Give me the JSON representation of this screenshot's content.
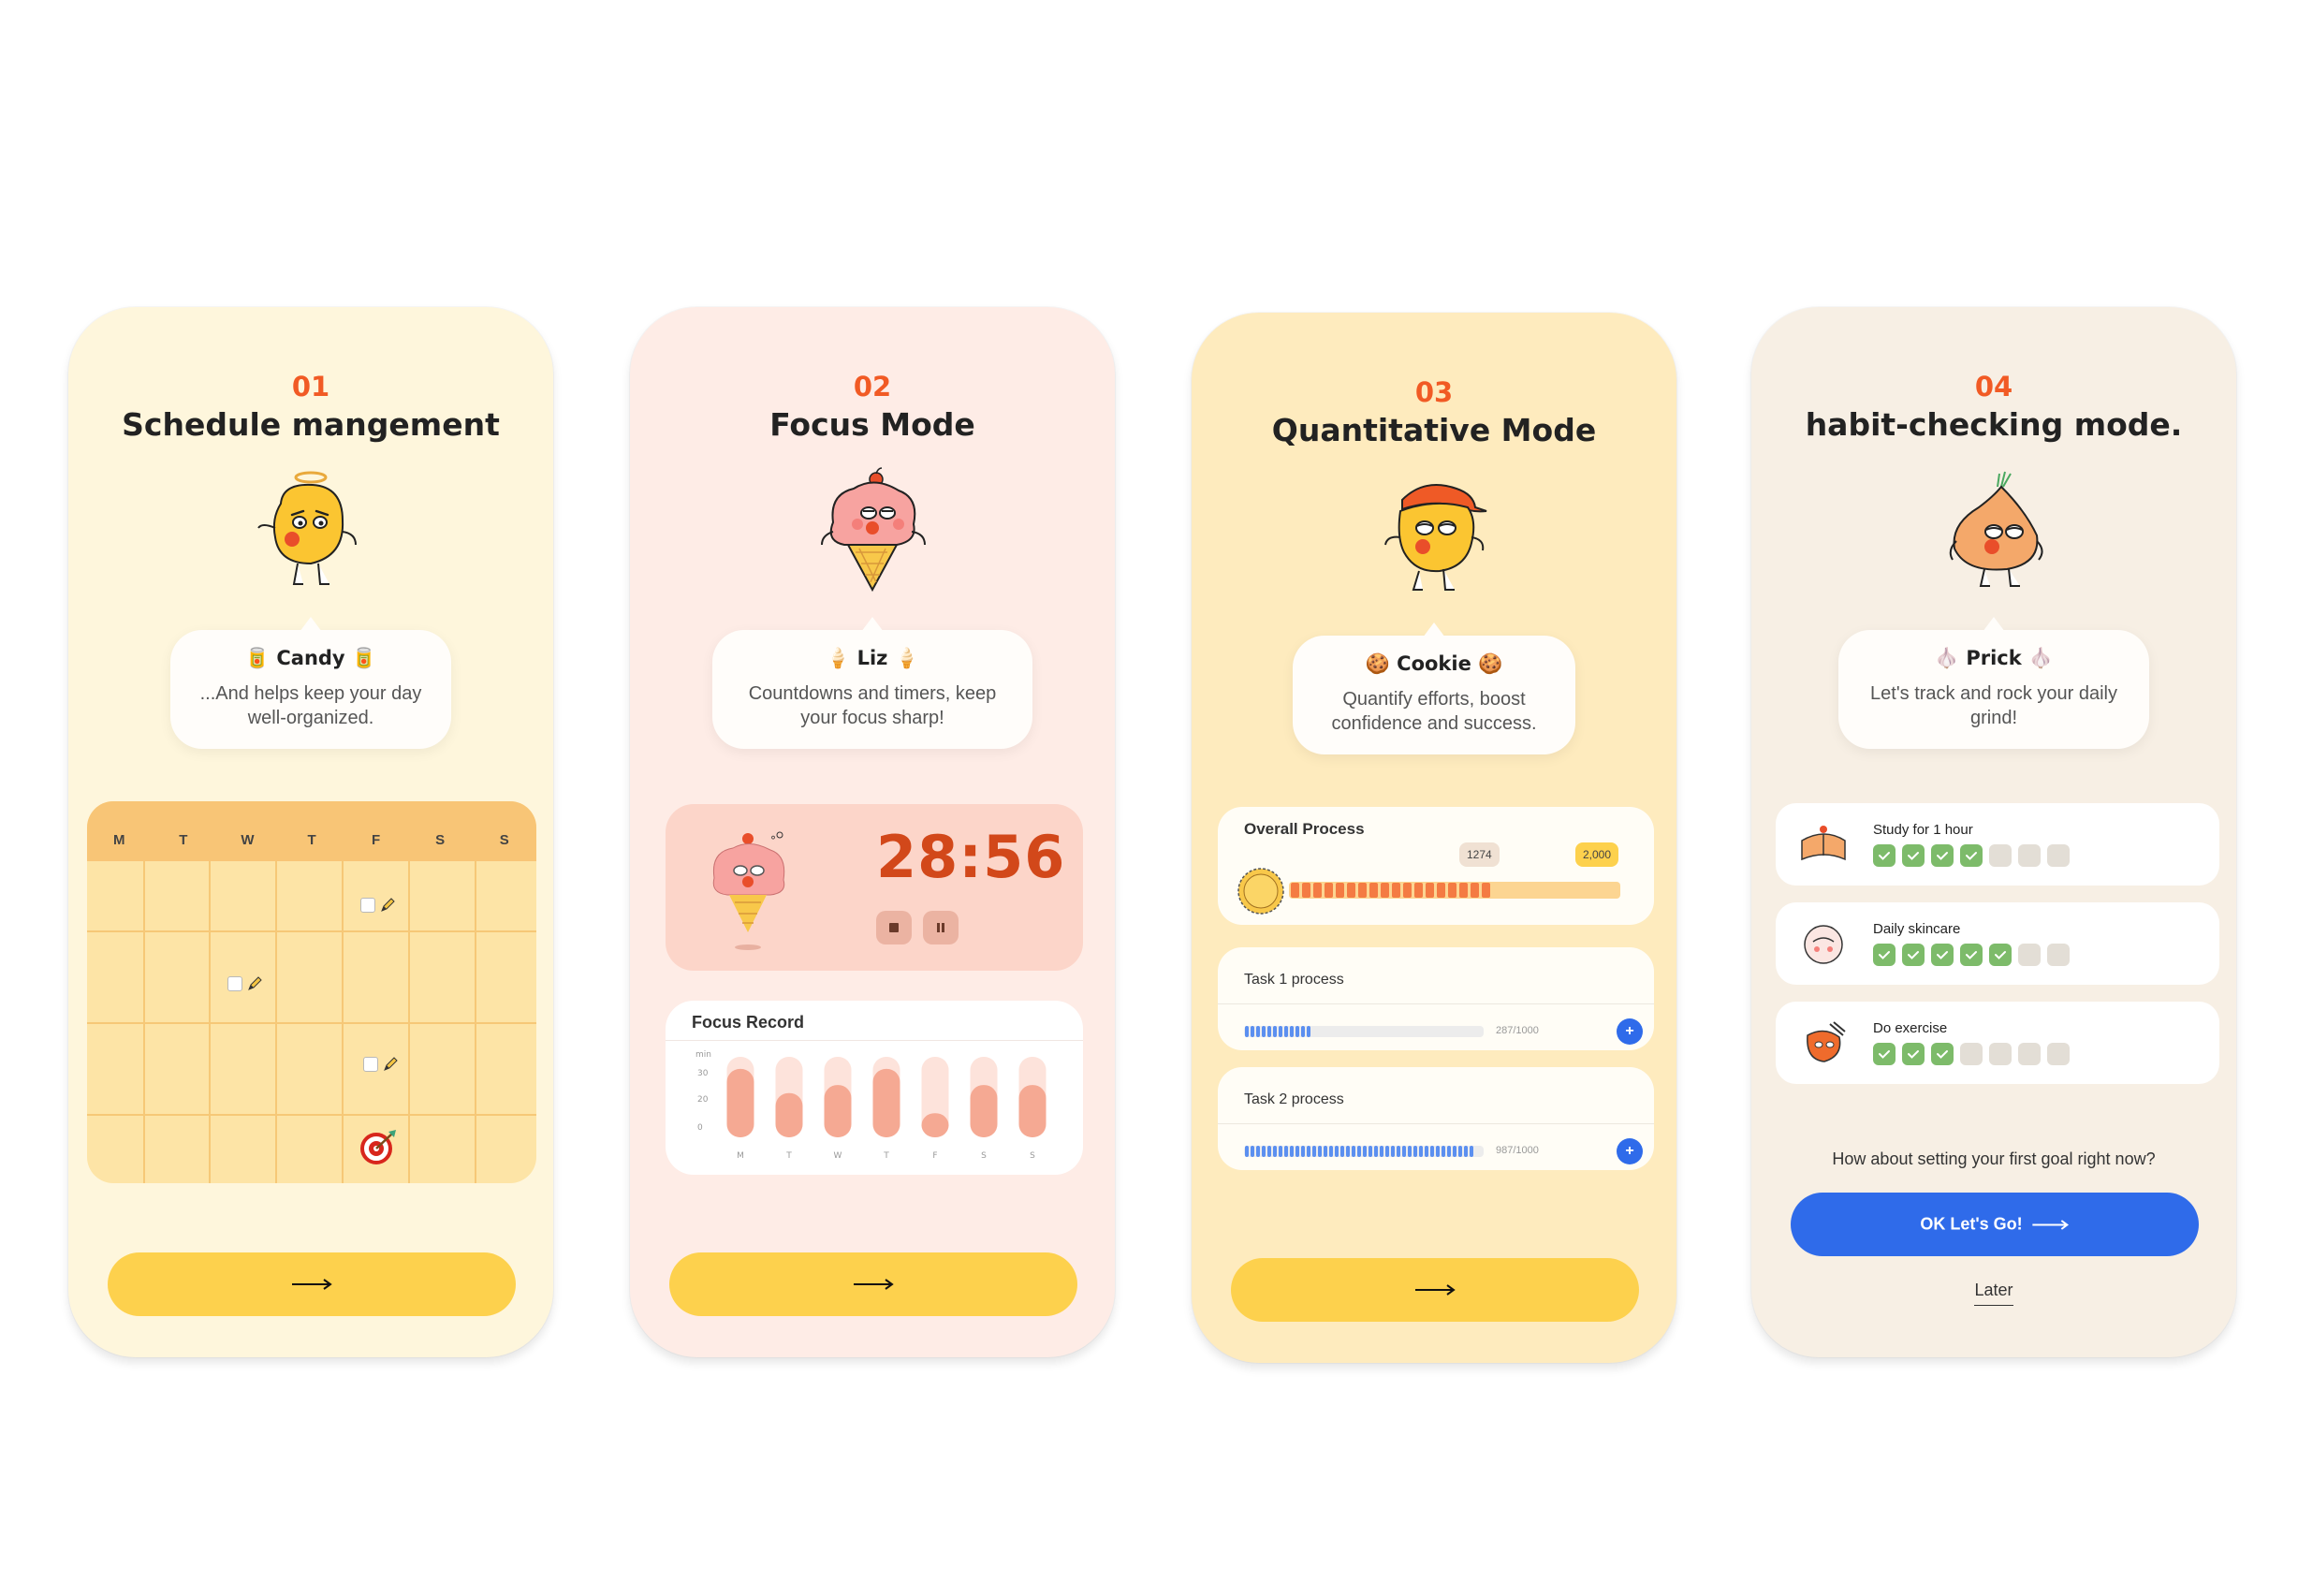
{
  "screens": [
    {
      "number": "01",
      "title": "Schedule mangement",
      "character": {
        "name": "🥫 Candy 🥫",
        "text": "...And helps keep your day well-organized."
      },
      "calendar": {
        "days": [
          "M",
          "T",
          "W",
          "T",
          "F",
          "S",
          "S"
        ]
      },
      "next_icon": "arrow-right-icon"
    },
    {
      "number": "02",
      "title": "Focus Mode",
      "character": {
        "name": "🍦 Liz 🍦",
        "text": "Countdowns and timers, keep your focus sharp!"
      },
      "timer": {
        "value": "28:56"
      },
      "focus_record": {
        "title": "Focus Record",
        "unit": "min",
        "yticks": [
          "30",
          "20",
          "0"
        ],
        "days": [
          "M",
          "T",
          "W",
          "T",
          "F",
          "S",
          "S"
        ]
      },
      "next_icon": "arrow-right-icon"
    },
    {
      "number": "03",
      "title": "Quantitative Mode",
      "character": {
        "name": "🍪 Cookie 🍪",
        "text": "Quantify efforts, boost confidence and success."
      },
      "overall": {
        "title": "Overall Process",
        "current": "1274",
        "target": "2,000"
      },
      "tasks": [
        {
          "title": "Task 1 process",
          "count": "287/1000",
          "fraction": 0.287
        },
        {
          "title": "Task 2 process",
          "count": "987/1000",
          "fraction": 0.987
        }
      ],
      "next_icon": "arrow-right-icon"
    },
    {
      "number": "04",
      "title": "habit-checking mode.",
      "character": {
        "name": "🧄 Prick 🧄",
        "text": "Let's track and rock your daily grind!"
      },
      "habits": [
        {
          "name": "Study for 1 hour",
          "done": 4,
          "total": 7
        },
        {
          "name": "Daily skincare",
          "done": 5,
          "total": 7
        },
        {
          "name": "Do exercise",
          "done": 3,
          "total": 7
        }
      ],
      "question": "How about setting your first goal right now?",
      "ok_label": "OK Let's Go!",
      "later_label": "Later"
    }
  ],
  "colors": {
    "accent": "#F15A24",
    "yellow_button": "#FDD14D",
    "blue_button": "#2F6BEA",
    "check_green": "#7DBB6A"
  }
}
